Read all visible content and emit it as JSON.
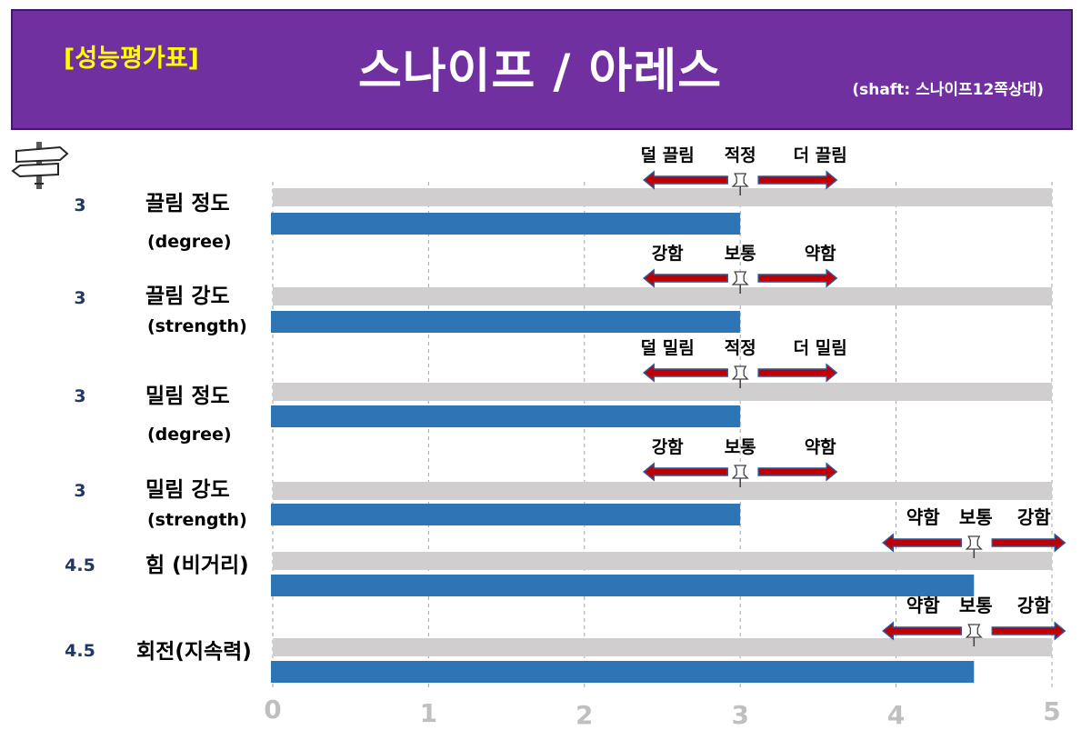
{
  "header": {
    "badge": "[성능평가표]",
    "title": "스나이프 / 아레스",
    "subtitle": "(shaft: 스나이프12쪽상대)"
  },
  "colors": {
    "header_bg": "#7030a0",
    "badge": "#ffff00",
    "bar": "#2e75b6",
    "track": "#d0cece",
    "score": "#1f3864",
    "arrow": "#c00000",
    "axis_tick": "#bfbfbf"
  },
  "icons": {
    "signpost": "signpost-icon",
    "pin": "pushpin-icon"
  },
  "chart_data": {
    "type": "bar",
    "orientation": "horizontal",
    "xlim": [
      0,
      5
    ],
    "x_ticks": [
      "0",
      "1",
      "2",
      "3",
      "4",
      "5"
    ],
    "grid": true,
    "rows": [
      {
        "label1": "끌림 정도",
        "label2": "(degree)",
        "score": "3",
        "value": 3,
        "scale": {
          "left": "덜 끌림",
          "center": "적정",
          "right": "더 끌림",
          "pin": 3
        }
      },
      {
        "label1": "끌림 강도",
        "label2": "(strength)",
        "score": "3",
        "value": 3,
        "scale": {
          "left": "강함",
          "center": "보통",
          "right": "약함",
          "pin": 3
        }
      },
      {
        "label1": "밀림 정도",
        "label2": "(degree)",
        "score": "3",
        "value": 3,
        "scale": {
          "left": "덜 밀림",
          "center": "적정",
          "right": "더 밀림",
          "pin": 3
        }
      },
      {
        "label1": "밀림 강도",
        "label2": "(strength)",
        "score": "3",
        "value": 3,
        "scale": {
          "left": "강함",
          "center": "보통",
          "right": "약함",
          "pin": 3
        }
      },
      {
        "label1": "힘 (비거리)",
        "label2": "",
        "score": "4.5",
        "value": 4.5,
        "scale": {
          "left": "약함",
          "center": "보통",
          "right": "강함",
          "pin": 4.5
        }
      },
      {
        "label1": "회전(지속력)",
        "label2": "",
        "score": "4.5",
        "value": 4.5,
        "scale": {
          "left": "약함",
          "center": "보통",
          "right": "강함",
          "pin": 4.5
        }
      }
    ]
  }
}
